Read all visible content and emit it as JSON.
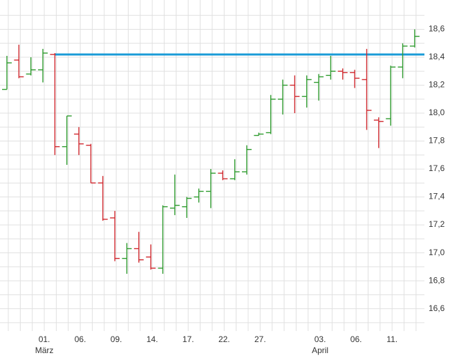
{
  "chart_data": {
    "type": "ohlc",
    "categories": [
      null,
      null,
      null,
      "01.",
      null,
      null,
      "06.",
      null,
      null,
      "09.",
      null,
      null,
      "14.",
      null,
      null,
      "17.",
      null,
      null,
      "22.",
      null,
      null,
      "27.",
      null,
      null,
      null,
      null,
      "03.",
      null,
      null,
      "06.",
      null,
      null,
      "11.",
      null,
      null
    ],
    "month_labels": [
      null,
      null,
      null,
      "März",
      null,
      null,
      null,
      null,
      null,
      null,
      null,
      null,
      null,
      null,
      null,
      null,
      null,
      null,
      null,
      null,
      null,
      null,
      null,
      null,
      null,
      null,
      "April",
      null,
      null,
      null,
      null,
      null,
      null,
      null,
      null
    ],
    "open": [
      18.17,
      18.38,
      18.28,
      18.31,
      18.42,
      17.76,
      17.85,
      17.77,
      17.5,
      17.25,
      16.96,
      17.03,
      16.97,
      16.89,
      17.32,
      17.33,
      17.4,
      17.44,
      17.57,
      17.53,
      17.58,
      17.84,
      17.86,
      18.1,
      18.2,
      18.12,
      18.22,
      18.27,
      18.3,
      18.29,
      18.24,
      17.95,
      17.96,
      18.33,
      18.48
    ],
    "high": [
      18.41,
      18.49,
      18.4,
      18.46,
      18.43,
      17.98,
      17.9,
      17.78,
      17.55,
      17.3,
      17.07,
      17.15,
      17.06,
      17.34,
      17.56,
      17.4,
      17.46,
      17.6,
      17.59,
      17.67,
      17.77,
      17.86,
      18.13,
      18.24,
      18.27,
      18.27,
      18.28,
      18.41,
      18.32,
      18.31,
      18.46,
      17.97,
      18.34,
      18.5,
      18.6
    ],
    "low": [
      18.17,
      18.25,
      18.27,
      18.22,
      17.7,
      17.63,
      17.7,
      17.5,
      17.23,
      16.94,
      16.85,
      16.93,
      16.88,
      16.85,
      17.27,
      17.25,
      17.36,
      17.32,
      17.52,
      17.52,
      17.56,
      17.84,
      17.85,
      17.99,
      18.0,
      18.04,
      18.09,
      18.24,
      18.24,
      18.18,
      17.88,
      17.75,
      17.91,
      18.25,
      18.47
    ],
    "close": [
      18.36,
      18.26,
      18.31,
      18.43,
      17.76,
      17.98,
      17.78,
      17.5,
      17.24,
      16.96,
      17.03,
      16.95,
      16.89,
      17.33,
      17.34,
      17.39,
      17.44,
      17.57,
      17.53,
      17.58,
      17.74,
      17.85,
      18.1,
      18.2,
      18.12,
      18.24,
      18.26,
      18.3,
      18.29,
      18.25,
      18.02,
      17.94,
      18.33,
      18.48,
      18.55
    ],
    "up_color": "#2e9b2e",
    "down_color": "#d0282e",
    "hline": {
      "value": 18.42,
      "x_start": 4,
      "color": "#1a9bd7"
    },
    "ylim": [
      16.44,
      18.81
    ],
    "yticks": [
      {
        "value": 16.6,
        "label": "16,6"
      },
      {
        "value": 16.8,
        "label": "16,8"
      },
      {
        "value": 17.0,
        "label": "17,0"
      },
      {
        "value": 17.2,
        "label": "17,2"
      },
      {
        "value": 17.4,
        "label": "17,4"
      },
      {
        "value": 17.6,
        "label": "17,6"
      },
      {
        "value": 17.8,
        "label": "17,8"
      },
      {
        "value": 18.0,
        "label": "18,0"
      },
      {
        "value": 18.2,
        "label": "18,2"
      },
      {
        "value": 18.4,
        "label": "18,4"
      },
      {
        "value": 18.6,
        "label": "18,6"
      }
    ],
    "minor_yticks": [
      16.5,
      16.7,
      16.9,
      17.1,
      17.3,
      17.5,
      17.7,
      17.9,
      18.1,
      18.3,
      18.5,
      18.7
    ],
    "grid": true
  }
}
